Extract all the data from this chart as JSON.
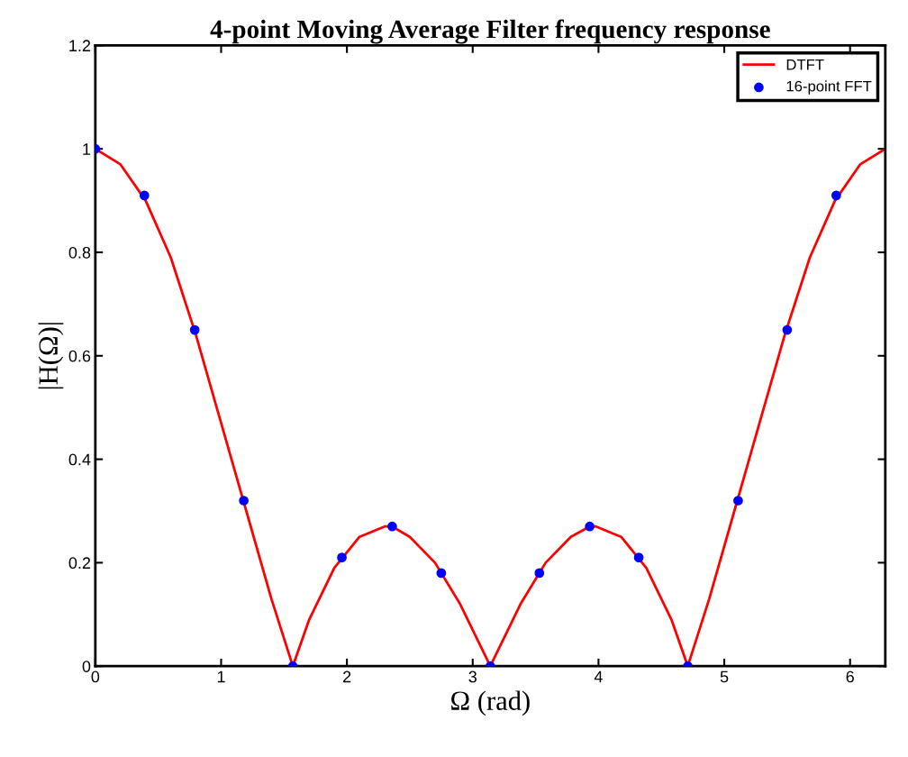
{
  "chart_data": {
    "type": "line",
    "title": "4-point Moving Average Filter frequency response",
    "xlabel": "Ω (rad)",
    "ylabel": "|H(Ω)|",
    "xlim": [
      0,
      6.28
    ],
    "xticks": [
      0,
      1,
      2,
      3,
      4,
      5,
      6
    ],
    "ylim": [
      0,
      1.2
    ],
    "yticks": [
      0,
      0.2,
      0.4,
      0.6,
      0.8,
      1,
      1.2
    ],
    "grid": false,
    "legend": "top right",
    "series": [
      {
        "name": "DTFT",
        "color": "#ff0000",
        "marker": "none",
        "line_style": "solid",
        "x": [
          0,
          0.2,
          0.4,
          0.6,
          0.8,
          1.0,
          1.2,
          1.4,
          1.57,
          1.7,
          1.9,
          2.1,
          2.3,
          2.36,
          2.5,
          2.7,
          2.9,
          3.14,
          3.38,
          3.58,
          3.78,
          3.93,
          3.98,
          4.18,
          4.38,
          4.58,
          4.71,
          4.88,
          5.08,
          5.28,
          5.48,
          5.68,
          5.88,
          6.08,
          6.28
        ],
        "values": [
          1,
          0.97,
          0.9,
          0.79,
          0.64,
          0.47,
          0.3,
          0.13,
          0,
          0.09,
          0.19,
          0.25,
          0.27,
          0.27,
          0.25,
          0.2,
          0.12,
          0,
          0.12,
          0.2,
          0.25,
          0.27,
          0.27,
          0.25,
          0.19,
          0.09,
          0,
          0.13,
          0.3,
          0.47,
          0.64,
          0.79,
          0.9,
          0.97,
          1
        ]
      },
      {
        "name": "16-point FFT",
        "type": "scatter",
        "color": "#0000ff",
        "marker": "circle",
        "x": [
          0,
          0.39,
          0.79,
          1.18,
          1.57,
          1.96,
          2.36,
          2.75,
          3.14,
          3.53,
          3.93,
          4.32,
          4.71,
          5.11,
          5.5,
          5.89
        ],
        "values": [
          1,
          0.91,
          0.65,
          0.32,
          0,
          0.21,
          0.27,
          0.18,
          0,
          0.18,
          0.27,
          0.21,
          0,
          0.32,
          0.65,
          0.91
        ]
      }
    ]
  }
}
